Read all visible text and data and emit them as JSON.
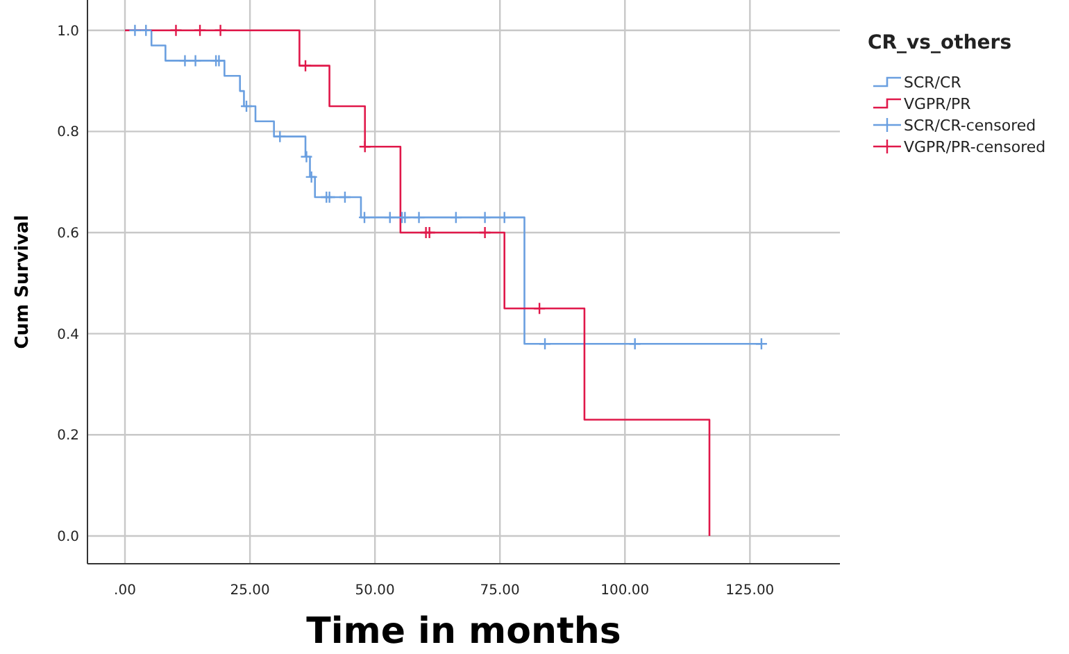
{
  "chart_data": {
    "type": "step",
    "xlabel": "Time in months",
    "ylabel": "Cum Survival",
    "legend_title": "CR_vs_others",
    "legend": "top right",
    "grid": true,
    "xlim": [
      -7.5,
      143
    ],
    "ylim": [
      -0.055,
      1.06
    ],
    "xticks": [
      {
        "value": 0,
        "label": ".00"
      },
      {
        "value": 25,
        "label": "25.00"
      },
      {
        "value": 50,
        "label": "50.00"
      },
      {
        "value": 75,
        "label": "75.00"
      },
      {
        "value": 100,
        "label": "100.00"
      },
      {
        "value": 125,
        "label": "125.00"
      }
    ],
    "yticks": [
      {
        "value": 0,
        "label": "0.0"
      },
      {
        "value": 0.2,
        "label": "0.2"
      },
      {
        "value": 0.4,
        "label": "0.4"
      },
      {
        "value": 0.6,
        "label": "0.6"
      },
      {
        "value": 0.8,
        "label": "0.8"
      },
      {
        "value": 1,
        "label": "1.0"
      }
    ],
    "series": [
      {
        "name": "SCR/CR",
        "color": "#6a9fe0",
        "x": [
          0,
          5.3,
          8.1,
          19.9,
          23.0,
          23.8,
          26.1,
          29.8,
          36.1,
          37.0,
          38.0,
          47.2,
          79.9,
          127.3
        ],
        "values": [
          1,
          0.97,
          0.94,
          0.91,
          0.88,
          0.85,
          0.82,
          0.79,
          0.75,
          0.71,
          0.67,
          0.63,
          0.38,
          0.38
        ]
      },
      {
        "name": "VGPR/PR",
        "color": "#e0184a",
        "x": [
          0,
          34.9,
          40.9,
          48.0,
          55.1,
          75.9,
          91.9,
          116.9
        ],
        "values": [
          1,
          0.93,
          0.85,
          0.77,
          0.6,
          0.45,
          0.23,
          0
        ]
      },
      {
        "name": "SCR/CR-censored",
        "color": "#6a9fe0",
        "type": "scatter",
        "marker": "cross",
        "x": [
          2.0,
          4.2,
          12.0,
          14.1,
          18.2,
          18.8,
          24.3,
          31.0,
          36.3,
          37.3,
          40.3,
          40.9,
          44.0,
          47.9,
          53.0,
          55.4,
          56.0,
          58.8,
          66.2,
          72.0,
          75.9,
          84.0,
          102.0,
          127.3
        ],
        "values": [
          1,
          1,
          0.94,
          0.94,
          0.94,
          0.94,
          0.85,
          0.79,
          0.75,
          0.71,
          0.67,
          0.67,
          0.67,
          0.63,
          0.63,
          0.63,
          0.63,
          0.63,
          0.63,
          0.63,
          0.63,
          0.38,
          0.38,
          0.38
        ]
      },
      {
        "name": "VGPR/PR-censored",
        "color": "#e0184a",
        "type": "scatter",
        "marker": "cross",
        "x": [
          10.2,
          15.0,
          19.1,
          36.1,
          48.0,
          60.2,
          60.9,
          72.0,
          82.9
        ],
        "values": [
          1,
          1,
          1,
          0.93,
          0.77,
          0.6,
          0.6,
          0.6,
          0.45
        ]
      }
    ]
  }
}
